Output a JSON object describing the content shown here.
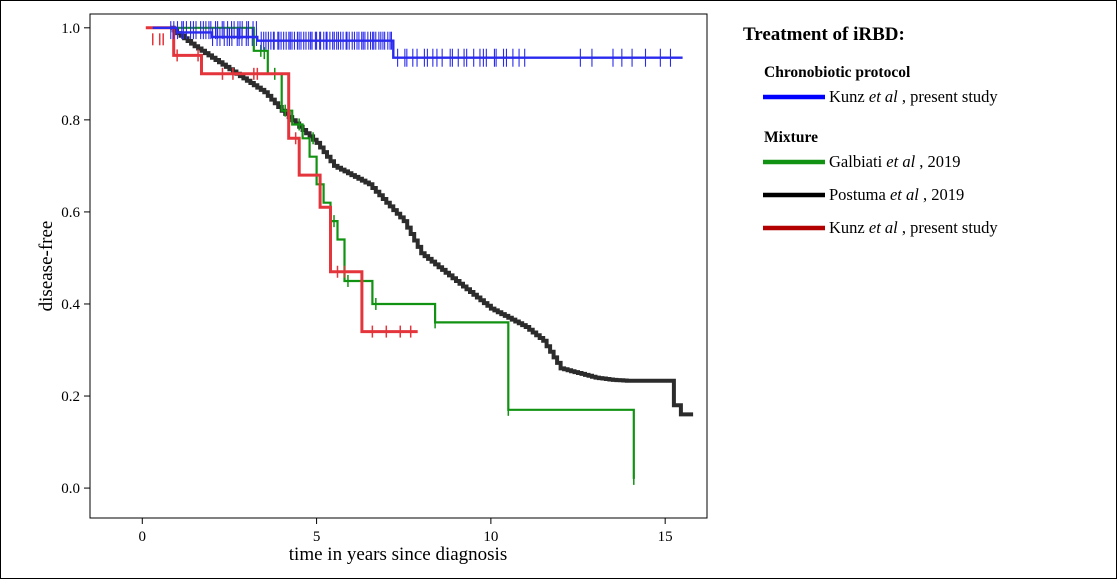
{
  "chart_data": {
    "type": "line",
    "subtype": "kaplan-meier step curves",
    "xlabel": "time in years since diagnosis",
    "ylabel": "disease-free",
    "xlim": [
      -1.5,
      16.2
    ],
    "ylim": [
      -0.065,
      1.03
    ],
    "xticks": [
      "0",
      "5",
      "10",
      "15"
    ],
    "xtick_values": [
      0,
      5,
      10,
      15
    ],
    "yticks": [
      "0.0",
      "0.2",
      "0.4",
      "0.6",
      "0.8",
      "1.0"
    ],
    "ytick_values": [
      0.0,
      0.2,
      0.4,
      0.6,
      0.8,
      1.0
    ],
    "grid": false,
    "legend": {
      "position": "right",
      "title": "Treatment of iRBD:",
      "groups": [
        {
          "label": "Chronobiotic protocol",
          "entries": [
            {
              "pre": "Kunz ",
              "em": "et al",
              "post": " , present study",
              "color": "#0000ff"
            }
          ]
        },
        {
          "label": "Mixture",
          "entries": [
            {
              "pre": "Galbiati ",
              "em": "et al",
              "post": " , 2019",
              "color": "#129212"
            },
            {
              "pre": "Postuma ",
              "em": "et al",
              "post": " , 2019",
              "color": "#000000"
            },
            {
              "pre": "Kunz ",
              "em": "et al",
              "post": " , present study",
              "color": "#b30000"
            }
          ]
        }
      ]
    },
    "series": [
      {
        "color": "#2c2c2c",
        "width": 4,
        "mode": "smooth-decline",
        "points": [
          [
            0.8,
            1.0
          ],
          [
            1.5,
            0.96
          ],
          [
            2.5,
            0.91
          ],
          [
            3.5,
            0.86
          ],
          [
            4,
            0.82
          ],
          [
            5,
            0.75
          ],
          [
            5.5,
            0.7
          ],
          [
            6,
            0.68
          ],
          [
            6.5,
            0.66
          ],
          [
            7,
            0.62
          ],
          [
            7.5,
            0.58
          ],
          [
            8,
            0.51
          ],
          [
            8.5,
            0.48
          ],
          [
            9,
            0.45
          ],
          [
            9.5,
            0.42
          ],
          [
            10,
            0.39
          ],
          [
            10.5,
            0.37
          ],
          [
            11,
            0.35
          ],
          [
            11.5,
            0.32
          ],
          [
            12,
            0.26
          ],
          [
            12.5,
            0.25
          ],
          [
            13,
            0.24
          ],
          [
            13.5,
            0.235
          ],
          [
            14,
            0.233
          ],
          [
            15,
            0.233
          ],
          [
            15.25,
            0.233
          ],
          [
            15.25,
            0.18
          ],
          [
            15.45,
            0.18
          ],
          [
            15.45,
            0.16
          ],
          [
            15.8,
            0.16
          ]
        ],
        "censor": []
      },
      {
        "color": "#129212",
        "width": 2.2,
        "mode": "step",
        "points": [
          [
            0.5,
            1.0
          ],
          [
            3.2,
            1.0
          ],
          [
            3.2,
            0.95
          ],
          [
            3.6,
            0.95
          ],
          [
            3.6,
            0.9
          ],
          [
            4.0,
            0.9
          ],
          [
            4.0,
            0.82
          ],
          [
            4.3,
            0.82
          ],
          [
            4.3,
            0.79
          ],
          [
            4.6,
            0.79
          ],
          [
            4.6,
            0.76
          ],
          [
            4.8,
            0.76
          ],
          [
            4.8,
            0.72
          ],
          [
            5.0,
            0.72
          ],
          [
            5.0,
            0.66
          ],
          [
            5.2,
            0.66
          ],
          [
            5.2,
            0.62
          ],
          [
            5.4,
            0.62
          ],
          [
            5.4,
            0.58
          ],
          [
            5.6,
            0.58
          ],
          [
            5.6,
            0.54
          ],
          [
            5.8,
            0.54
          ],
          [
            5.8,
            0.45
          ],
          [
            6.6,
            0.45
          ],
          [
            6.6,
            0.4
          ],
          [
            8.4,
            0.4
          ],
          [
            8.4,
            0.36
          ],
          [
            10.5,
            0.36
          ],
          [
            10.5,
            0.17
          ],
          [
            14.1,
            0.17
          ],
          [
            14.1,
            0.02
          ]
        ],
        "censor": [
          [
            3.4,
            0.95
          ],
          [
            3.5,
            0.945
          ],
          [
            3.8,
            0.9
          ],
          [
            4.1,
            0.82
          ],
          [
            4.5,
            0.79
          ],
          [
            4.9,
            0.76
          ],
          [
            5.1,
            0.66
          ],
          [
            5.5,
            0.58
          ],
          [
            5.9,
            0.45
          ],
          [
            6.7,
            0.4
          ],
          [
            8.4,
            0.36
          ],
          [
            10.5,
            0.17
          ],
          [
            14.1,
            0.02
          ]
        ]
      },
      {
        "color": "#e3353b",
        "width": 3,
        "mode": "step",
        "points": [
          [
            0.1,
            1.0
          ],
          [
            0.9,
            1.0
          ],
          [
            0.9,
            0.94
          ],
          [
            1.7,
            0.94
          ],
          [
            1.7,
            0.9
          ],
          [
            4.2,
            0.9
          ],
          [
            4.2,
            0.76
          ],
          [
            4.5,
            0.76
          ],
          [
            4.5,
            0.68
          ],
          [
            5.1,
            0.68
          ],
          [
            5.1,
            0.61
          ],
          [
            5.4,
            0.61
          ],
          [
            5.4,
            0.47
          ],
          [
            6.3,
            0.47
          ],
          [
            6.3,
            0.34
          ],
          [
            7.9,
            0.34
          ]
        ],
        "censor": [
          [
            0.3,
            0.975
          ],
          [
            0.5,
            0.975
          ],
          [
            0.6,
            0.975
          ],
          [
            1.0,
            0.94
          ],
          [
            1.6,
            0.94
          ],
          [
            2.3,
            0.9
          ],
          [
            2.6,
            0.9
          ],
          [
            3.2,
            0.9
          ],
          [
            3.3,
            0.9
          ],
          [
            4.4,
            0.76
          ],
          [
            5.6,
            0.47
          ],
          [
            5.8,
            0.47
          ],
          [
            6.6,
            0.34
          ],
          [
            7.0,
            0.34
          ],
          [
            7.4,
            0.34
          ],
          [
            7.7,
            0.34
          ]
        ]
      },
      {
        "color": "#2a2aee",
        "width": 2.4,
        "mode": "step",
        "points": [
          [
            0.3,
            1.0
          ],
          [
            1.0,
            1.0
          ],
          [
            1.0,
            0.99
          ],
          [
            2.0,
            0.99
          ],
          [
            2.0,
            0.98
          ],
          [
            3.3,
            0.98
          ],
          [
            3.3,
            0.972
          ],
          [
            7.2,
            0.972
          ],
          [
            7.2,
            0.935
          ],
          [
            15.5,
            0.935
          ]
        ],
        "censor_ranges": [
          [
            0.8,
            3.3,
            0.995,
            28
          ],
          [
            2.0,
            3.3,
            0.98,
            14
          ],
          [
            3.4,
            7.2,
            0.972,
            60
          ],
          [
            7.3,
            11.0,
            0.935,
            26
          ],
          [
            12.5,
            15.4,
            0.935,
            8
          ]
        ]
      }
    ]
  }
}
